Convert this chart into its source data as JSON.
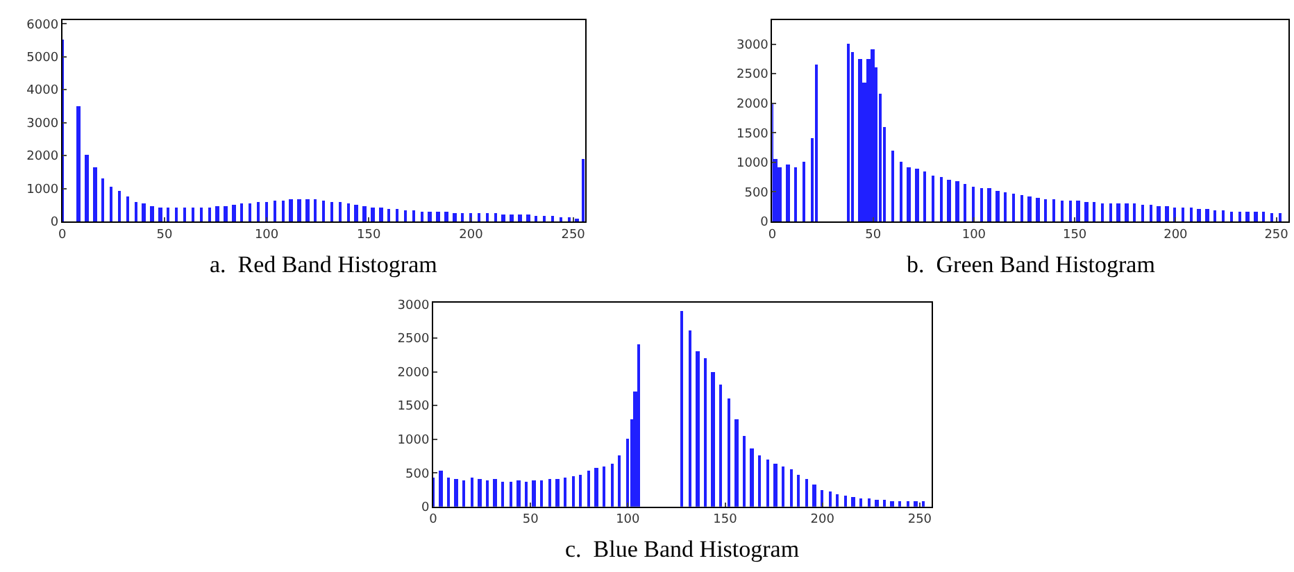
{
  "chart_data": [
    {
      "type": "bar",
      "color": "#2020ff",
      "xlim": [
        0,
        256
      ],
      "xticks": [
        0,
        50,
        100,
        150,
        200,
        250
      ],
      "ylim": [
        0,
        6100
      ],
      "yticks": [
        0,
        1000,
        2000,
        3000,
        4000,
        5000,
        6000
      ],
      "annotations": [
        "a.  Red Band Histogram"
      ],
      "x": [
        0,
        4,
        8,
        12,
        16,
        20,
        24,
        28,
        32,
        36,
        40,
        44,
        48,
        52,
        56,
        60,
        64,
        68,
        72,
        76,
        80,
        84,
        88,
        92,
        96,
        100,
        104,
        108,
        112,
        116,
        120,
        124,
        128,
        132,
        136,
        140,
        144,
        148,
        152,
        156,
        160,
        164,
        168,
        172,
        176,
        180,
        184,
        188,
        192,
        196,
        200,
        204,
        208,
        212,
        216,
        220,
        224,
        228,
        232,
        236,
        240,
        244,
        248,
        252,
        255
      ],
      "values": [
        5500,
        null,
        3500,
        2000,
        1650,
        1300,
        1050,
        900,
        750,
        600,
        520,
        470,
        430,
        400,
        400,
        400,
        400,
        400,
        420,
        440,
        460,
        500,
        520,
        540,
        560,
        600,
        620,
        640,
        650,
        660,
        670,
        660,
        630,
        600,
        560,
        520,
        490,
        460,
        420,
        400,
        380,
        350,
        320,
        310,
        300,
        290,
        280,
        270,
        260,
        250,
        240,
        240,
        230,
        230,
        220,
        210,
        200,
        190,
        180,
        160,
        140,
        120,
        100,
        80,
        1900
      ]
    },
    {
      "type": "bar",
      "color": "#2020ff",
      "xlim": [
        0,
        256
      ],
      "xticks": [
        0,
        50,
        100,
        150,
        200,
        250
      ],
      "ylim": [
        0,
        3400
      ],
      "yticks": [
        0,
        500,
        1000,
        1500,
        2000,
        2500,
        3000
      ],
      "annotations": [
        "b.  Green Band Histogram"
      ],
      "x": [
        0,
        2,
        4,
        8,
        12,
        16,
        20,
        22,
        24,
        28,
        32,
        36,
        38,
        40,
        44,
        46,
        48,
        50,
        52,
        54,
        56,
        60,
        64,
        68,
        72,
        76,
        80,
        84,
        88,
        92,
        96,
        100,
        104,
        108,
        112,
        116,
        120,
        124,
        128,
        132,
        136,
        140,
        144,
        148,
        152,
        156,
        160,
        164,
        168,
        172,
        176,
        180,
        184,
        188,
        192,
        196,
        200,
        204,
        208,
        212,
        216,
        220,
        224,
        228,
        232,
        236,
        240,
        244,
        248,
        252
      ],
      "values": [
        2000,
        1050,
        900,
        950,
        900,
        1000,
        1400,
        2650,
        null,
        null,
        null,
        null,
        3000,
        2850,
        2750,
        2350,
        2750,
        2900,
        2600,
        2150,
        1600,
        1200,
        1000,
        920,
        880,
        840,
        780,
        740,
        700,
        670,
        640,
        590,
        570,
        550,
        520,
        490,
        460,
        430,
        410,
        390,
        370,
        360,
        350,
        340,
        340,
        330,
        320,
        310,
        300,
        300,
        290,
        290,
        280,
        270,
        260,
        250,
        240,
        230,
        220,
        210,
        200,
        190,
        180,
        170,
        160,
        160,
        150,
        150,
        140,
        140
      ]
    },
    {
      "type": "bar",
      "color": "#2020ff",
      "xlim": [
        0,
        256
      ],
      "xticks": [
        0,
        50,
        100,
        150,
        200,
        250
      ],
      "ylim": [
        0,
        3020
      ],
      "yticks": [
        0,
        500,
        1000,
        1500,
        2000,
        2500,
        3000
      ],
      "annotations": [
        "c.  Blue Band Histogram"
      ],
      "x": [
        0,
        4,
        8,
        12,
        16,
        20,
        24,
        28,
        32,
        36,
        40,
        44,
        48,
        52,
        56,
        60,
        64,
        68,
        72,
        76,
        80,
        84,
        88,
        92,
        96,
        100,
        102,
        104,
        106,
        108,
        112,
        116,
        120,
        124,
        128,
        132,
        136,
        140,
        144,
        148,
        152,
        156,
        160,
        164,
        168,
        172,
        176,
        180,
        184,
        188,
        192,
        196,
        200,
        204,
        208,
        212,
        216,
        220,
        224,
        228,
        232,
        236,
        240,
        244,
        248,
        252
      ],
      "values": [
        420,
        530,
        420,
        400,
        390,
        420,
        410,
        380,
        400,
        370,
        370,
        380,
        370,
        390,
        390,
        400,
        410,
        430,
        450,
        470,
        520,
        580,
        600,
        640,
        750,
        1000,
        1300,
        1700,
        2400,
        null,
        null,
        null,
        null,
        null,
        2900,
        2600,
        2300,
        2200,
        2000,
        1800,
        1600,
        1300,
        1050,
        850,
        760,
        700,
        640,
        600,
        540,
        470,
        400,
        320,
        250,
        220,
        180,
        160,
        140,
        120,
        110,
        100,
        90,
        80,
        80,
        80,
        80,
        70
      ]
    }
  ]
}
